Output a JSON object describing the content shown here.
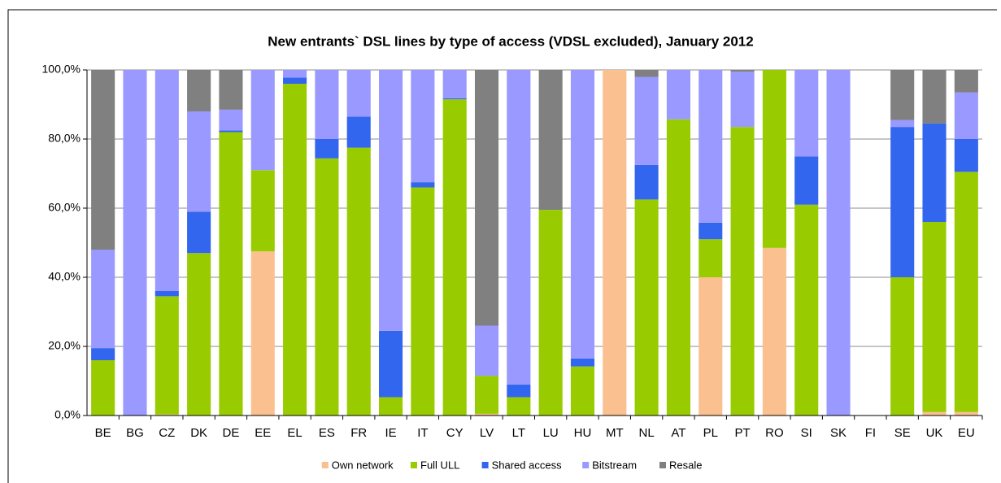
{
  "chart_data": {
    "type": "stacked_bar",
    "title": "New entrants` DSL lines by type of access (VDSL excluded), January 2012",
    "categories": [
      "BE",
      "BG",
      "CZ",
      "DK",
      "DE",
      "EE",
      "EL",
      "ES",
      "FR",
      "IE",
      "IT",
      "CY",
      "LV",
      "LT",
      "LU",
      "HU",
      "MT",
      "NL",
      "AT",
      "PL",
      "PT",
      "RO",
      "SI",
      "SK",
      "FI",
      "SE",
      "UK",
      "EU"
    ],
    "series": [
      {
        "name": "Own network",
        "color": "#fac090",
        "values": [
          0,
          0,
          0.3,
          0,
          0,
          47.5,
          0,
          0,
          0,
          0,
          0,
          0,
          0.5,
          0,
          0,
          0,
          100,
          0,
          0,
          40,
          0,
          48.5,
          0,
          0,
          0,
          0,
          1,
          1
        ]
      },
      {
        "name": "Full ULL",
        "color": "#99cc00",
        "values": [
          16,
          0,
          34.2,
          47,
          82,
          23.5,
          96,
          74.4,
          77.5,
          5.3,
          66,
          91.5,
          11,
          5.3,
          59.5,
          14.2,
          0,
          62.5,
          85.7,
          11,
          83.5,
          51.5,
          61,
          0,
          0,
          40,
          55,
          69.5
        ]
      },
      {
        "name": "Shared access",
        "color": "#3366ee",
        "values": [
          3.5,
          0,
          1.5,
          12,
          0.5,
          0,
          1.8,
          5.6,
          9,
          19.2,
          1.5,
          0.3,
          0,
          3.7,
          0,
          2.3,
          0,
          10,
          0,
          4.8,
          0,
          0,
          14,
          0,
          0,
          43.5,
          28.5,
          9.5
        ]
      },
      {
        "name": "Bitstream",
        "color": "#9999ff",
        "values": [
          28.5,
          100,
          64,
          29,
          6,
          29,
          2.2,
          20,
          13.5,
          75.5,
          32.5,
          8.2,
          14.5,
          91,
          0,
          83.5,
          0,
          25.5,
          14.3,
          44.2,
          16,
          0,
          25,
          100,
          0,
          2,
          0,
          13.5
        ]
      },
      {
        "name": "Resale",
        "color": "#808080",
        "values": [
          52,
          0,
          0,
          12,
          11.5,
          0,
          0,
          0,
          0,
          0,
          0,
          0,
          74,
          0,
          40.5,
          0,
          0,
          2,
          0,
          0,
          0.5,
          0,
          0,
          0,
          0,
          14.5,
          15.5,
          6.5
        ]
      }
    ],
    "ylim": [
      0,
      100
    ],
    "yticks": [
      {
        "value": 0,
        "label": "0,0%"
      },
      {
        "value": 20,
        "label": "20,0%"
      },
      {
        "value": 40,
        "label": "40,0%"
      },
      {
        "value": 60,
        "label": "60,0%"
      },
      {
        "value": 80,
        "label": "80,0%"
      },
      {
        "value": 100,
        "label": "100,0%"
      }
    ],
    "grid": true,
    "legend": "bottom"
  }
}
